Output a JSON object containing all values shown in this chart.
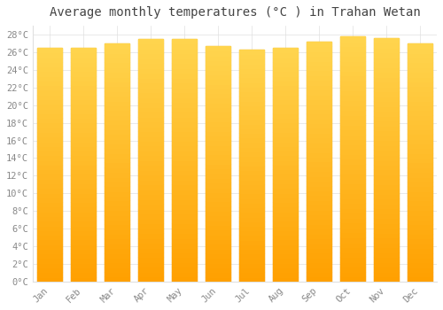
{
  "title": "Average monthly temperatures (°C ) in Trahan Wetan",
  "months": [
    "Jan",
    "Feb",
    "Mar",
    "Apr",
    "May",
    "Jun",
    "Jul",
    "Aug",
    "Sep",
    "Oct",
    "Nov",
    "Dec"
  ],
  "temperatures": [
    26.5,
    26.5,
    27.0,
    27.5,
    27.5,
    26.7,
    26.3,
    26.5,
    27.2,
    27.8,
    27.6,
    27.0
  ],
  "bar_color_top": "#FFD54F",
  "bar_color_bottom": "#FFA000",
  "bar_edge_color": "#B8860B",
  "background_color": "#FFFFFF",
  "grid_color": "#E0E0E0",
  "text_color": "#888888",
  "title_color": "#444444",
  "ylim": [
    0,
    29
  ],
  "ytick_step": 2,
  "title_fontsize": 10,
  "tick_fontsize": 7.5,
  "bar_width": 0.75
}
